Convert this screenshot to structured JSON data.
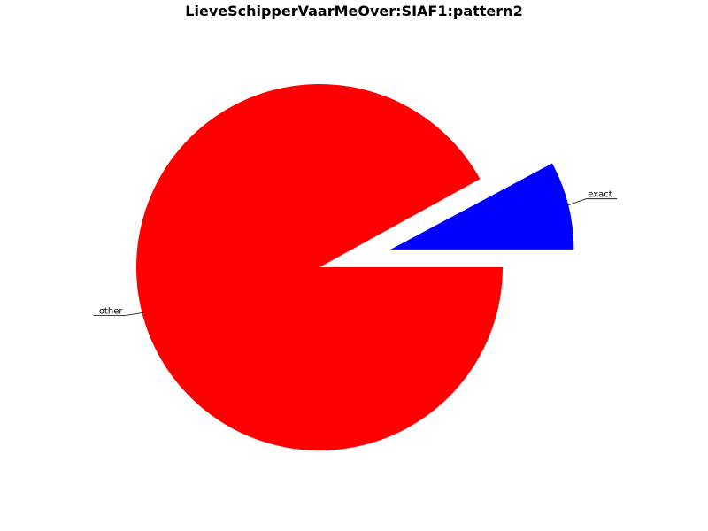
{
  "chart_data": {
    "type": "pie",
    "title": "LieveSchipperVaarMeOver:SIAF1:pattern2",
    "slices": [
      {
        "label": "exact",
        "value": 7.8,
        "color": "#0000ff",
        "explode": true
      },
      {
        "label": "",
        "value": 0.05,
        "color": "#ffffff",
        "explode": true
      },
      {
        "label": "",
        "value": 0.05,
        "color": "#ffffff",
        "explode": true
      },
      {
        "label": "",
        "value": 0.05,
        "color": "#ffffff",
        "explode": true
      },
      {
        "label": "",
        "value": 0.05,
        "color": "#ffffff",
        "explode": true
      },
      {
        "label": "other",
        "value": 92.0,
        "color": "#ff0000",
        "explode": false
      }
    ],
    "overlapping_labels_note": "",
    "legend": "none"
  }
}
